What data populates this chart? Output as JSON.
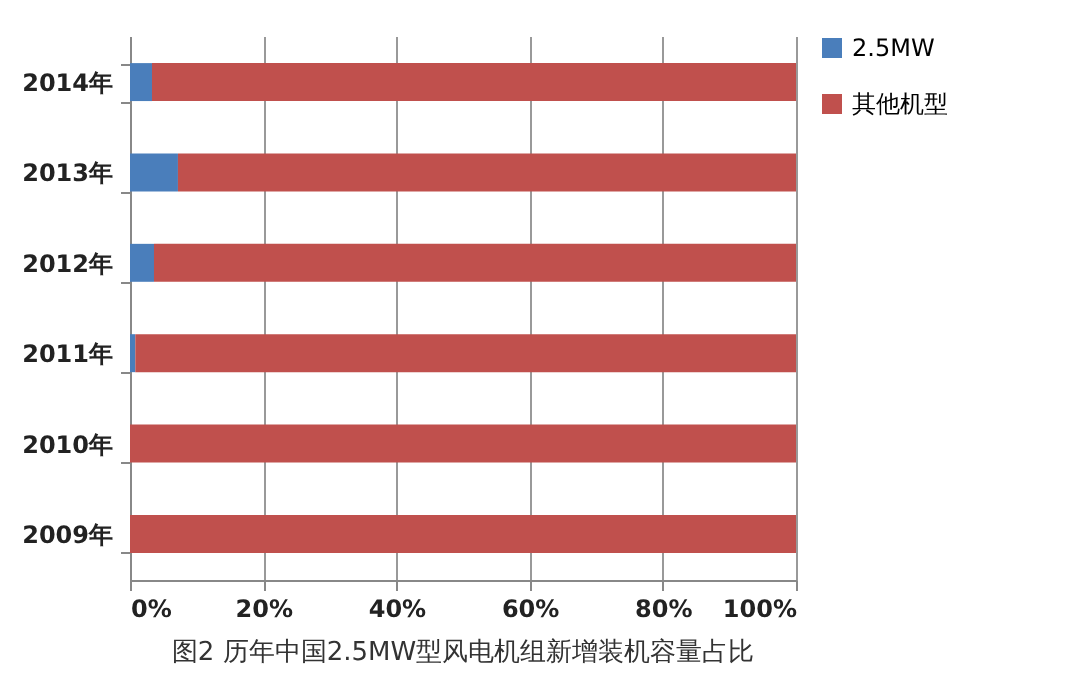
{
  "chart_data": {
    "type": "bar",
    "orientation": "horizontal",
    "stacked": true,
    "title": "图2 历年中国2.5MW型风电机组新增装机容量占比",
    "categories": [
      "2014年",
      "2013年",
      "2012年",
      "2011年",
      "2010年",
      "2009年"
    ],
    "series": [
      {
        "name": "2.5MW",
        "color": "#4a7ebb",
        "values": [
          3.3,
          7.2,
          3.6,
          0.8,
          0,
          0
        ]
      },
      {
        "name": "其他机型",
        "color": "#c0504d",
        "values": [
          96.7,
          92.8,
          96.4,
          99.2,
          100,
          100
        ]
      }
    ],
    "xlim": [
      0,
      100
    ],
    "xticks": [
      {
        "value": 0,
        "label": "0%"
      },
      {
        "value": 20,
        "label": "20%"
      },
      {
        "value": 40,
        "label": "40%"
      },
      {
        "value": 60,
        "label": "60%"
      },
      {
        "value": 80,
        "label": "80%"
      },
      {
        "value": 100,
        "label": "100%"
      }
    ],
    "grid": "x",
    "legend": "right"
  }
}
